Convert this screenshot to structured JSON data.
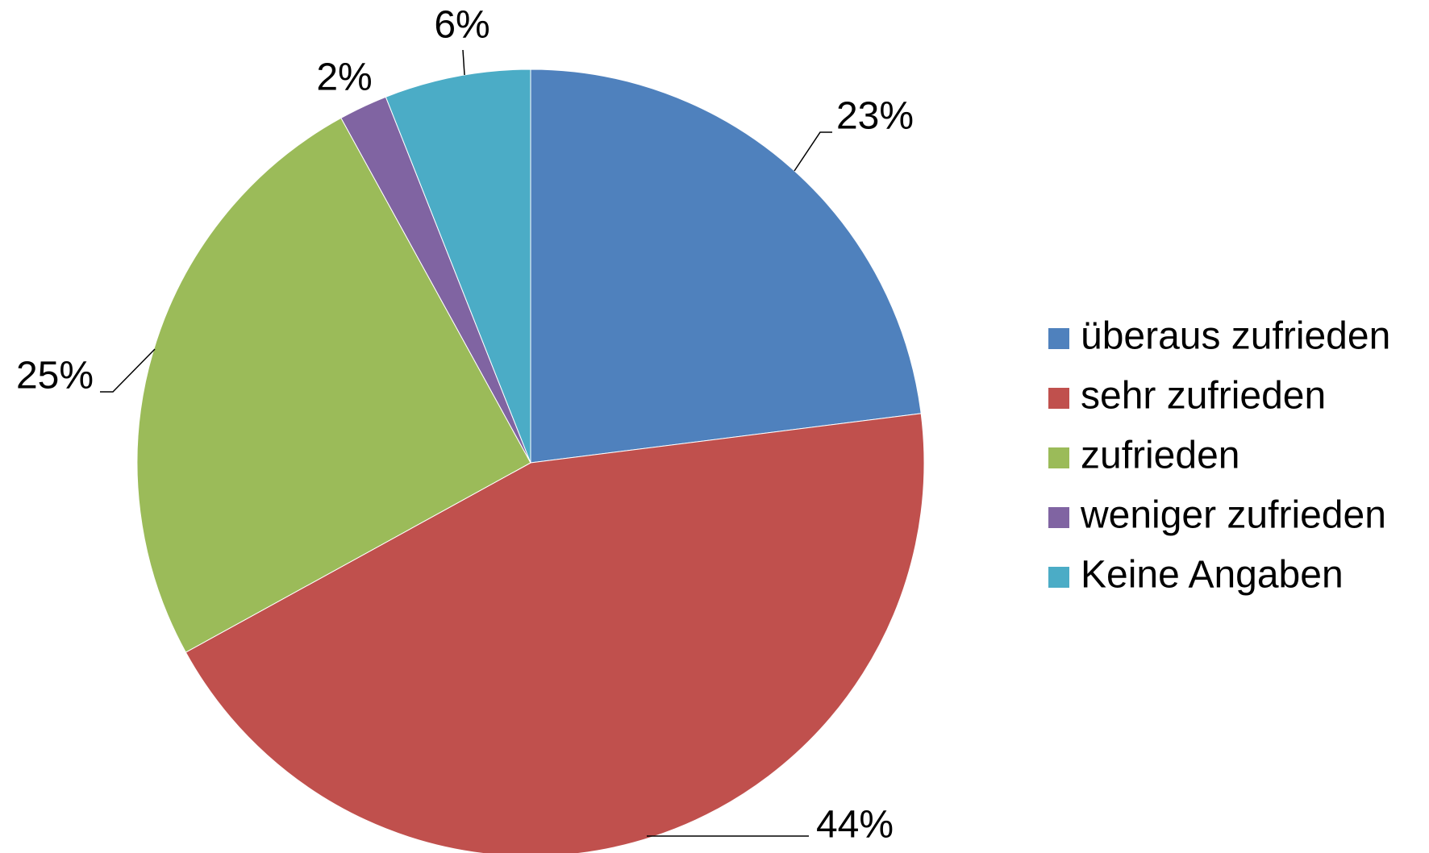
{
  "chart_data": {
    "type": "pie",
    "categories": [
      "überaus zufrieden",
      "sehr zufrieden",
      "zufrieden",
      "weniger zufrieden",
      "Keine Angaben"
    ],
    "values": [
      23,
      44,
      25,
      2,
      6
    ],
    "value_labels": [
      "23%",
      "44%",
      "25%",
      "2%",
      "6%"
    ],
    "colors": [
      "#4f81bd",
      "#c0504d",
      "#9bbb59",
      "#8064a2",
      "#4bacc6"
    ],
    "legend": "right"
  }
}
